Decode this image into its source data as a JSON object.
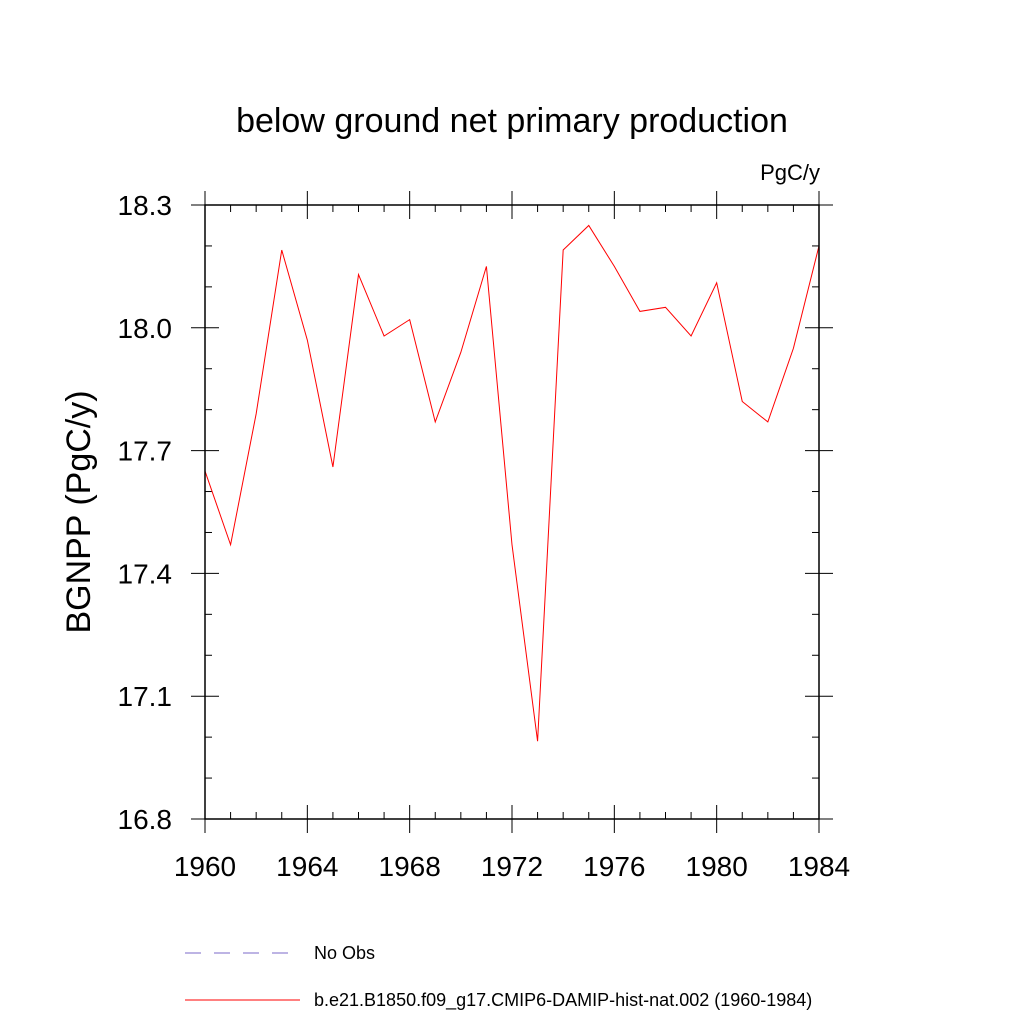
{
  "chart_data": {
    "type": "line",
    "title": "below ground net primary production",
    "units": "PgC/y",
    "ylabel": "BGNPP  (PgC/y)",
    "xlabel": "",
    "xlim": [
      1960,
      1984
    ],
    "ylim": [
      16.8,
      18.3
    ],
    "xticks": [
      1960,
      1964,
      1968,
      1972,
      1976,
      1980,
      1984
    ],
    "yticks": [
      16.8,
      17.1,
      17.4,
      17.7,
      18.0,
      18.3
    ],
    "x_minor_step": 1,
    "y_minor_step": 0.1,
    "grid": false,
    "legend_position": "bottom",
    "series": [
      {
        "name": "b.e21.B1850.f09_g17.CMIP6-DAMIP-hist-nat.002 (1960-1984)",
        "color": "#ff0000",
        "style": "solid",
        "x": [
          1960,
          1961,
          1962,
          1963,
          1964,
          1965,
          1966,
          1967,
          1968,
          1969,
          1970,
          1971,
          1972,
          1973,
          1974,
          1975,
          1976,
          1977,
          1978,
          1979,
          1980,
          1981,
          1982,
          1983,
          1984
        ],
        "values": [
          17.65,
          17.47,
          17.79,
          18.19,
          17.97,
          17.66,
          18.13,
          17.98,
          18.02,
          17.77,
          17.94,
          18.15,
          17.47,
          16.99,
          18.19,
          18.25,
          18.15,
          18.04,
          18.05,
          17.98,
          18.11,
          17.82,
          17.77,
          17.95,
          18.2
        ]
      }
    ],
    "legend": [
      {
        "label": "No Obs",
        "color": "#7b68c8",
        "style": "dashed"
      },
      {
        "label": "b.e21.B1850.f09_g17.CMIP6-DAMIP-hist-nat.002 (1960-1984)",
        "color": "#ff0000",
        "style": "solid"
      }
    ]
  }
}
